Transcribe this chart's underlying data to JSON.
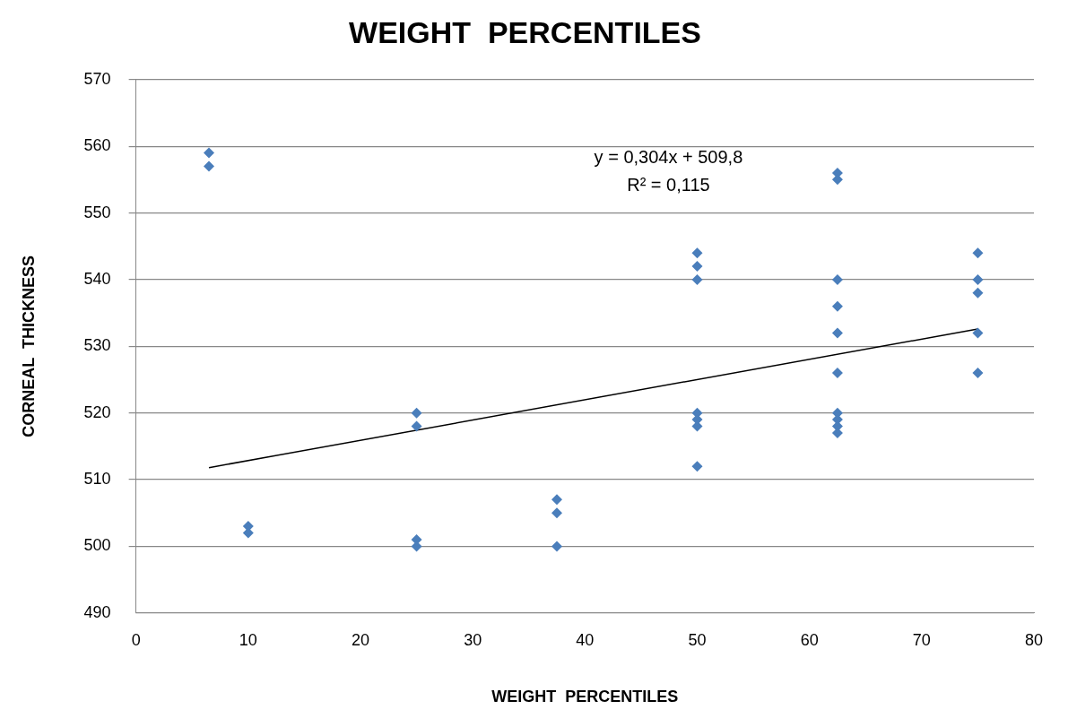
{
  "chart_data": {
    "type": "scatter",
    "title": "WEIGHT  PERCENTILES",
    "xlabel": "WEIGHT  PERCENTILES",
    "ylabel": "CORNEAL  THICKNESS",
    "xlim": [
      0,
      80
    ],
    "xticks": [
      0,
      10,
      20,
      30,
      40,
      50,
      60,
      70,
      80
    ],
    "ylim": [
      490,
      570
    ],
    "yticks": [
      490,
      500,
      510,
      520,
      530,
      540,
      550,
      560,
      570
    ],
    "grid": "y",
    "legend": false,
    "marker": "diamond",
    "series": [
      {
        "type": "scatter",
        "color": "#4a7ebb",
        "x": [
          6.5,
          6.5,
          10,
          10,
          25,
          25,
          25,
          25,
          37.5,
          37.5,
          37.5,
          50,
          50,
          50,
          50,
          50,
          50,
          50,
          62.5,
          62.5,
          62.5,
          62.5,
          62.5,
          62.5,
          62.5,
          62.5,
          62.5,
          62.5,
          75,
          75,
          75,
          75,
          75
        ],
        "values": [
          559,
          557,
          503,
          502,
          520,
          518,
          501,
          500,
          507,
          505,
          500,
          544,
          542,
          540,
          520,
          519,
          518,
          512,
          556,
          555,
          540,
          536,
          532,
          526,
          520,
          519,
          518,
          517,
          544,
          540,
          538,
          532,
          526
        ]
      },
      {
        "type": "line",
        "color": "#000000",
        "marker": "none",
        "x": [
          6.5,
          75
        ],
        "values": [
          511.8,
          532.6
        ]
      }
    ],
    "annotations": [
      "y = 0,304x + 509,8",
      "R² = 0,115"
    ]
  }
}
